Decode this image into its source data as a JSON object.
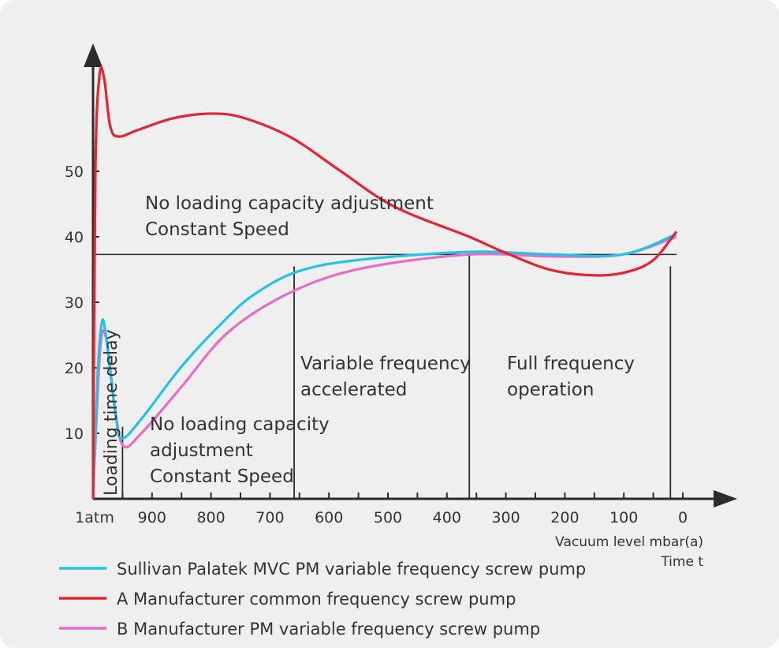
{
  "chart_data": {
    "type": "line",
    "xlabel": "Vacuum level mbar(a)",
    "xlabel2": "Time t",
    "xlim": [
      1000,
      -80
    ],
    "ylim": [
      0,
      66
    ],
    "x_ticks": [
      {
        "v": 1000,
        "label": "1atm"
      },
      {
        "v": 900,
        "label": "900"
      },
      {
        "v": 800,
        "label": "800"
      },
      {
        "v": 700,
        "label": "700"
      },
      {
        "v": 600,
        "label": "600"
      },
      {
        "v": 500,
        "label": "500"
      },
      {
        "v": 400,
        "label": "400"
      },
      {
        "v": 300,
        "label": "300"
      },
      {
        "v": 200,
        "label": "200"
      },
      {
        "v": 100,
        "label": "100"
      },
      {
        "v": 0,
        "label": "0"
      }
    ],
    "y_ticks": [
      10,
      20,
      30,
      40,
      50
    ],
    "reference_line": 37.3,
    "phase_boundaries": [
      {
        "x": 950,
        "top": 11
      },
      {
        "x": 659,
        "top": 35.5
      },
      {
        "x": 362,
        "top": 37.3
      },
      {
        "x": 21,
        "top": 35.5
      }
    ],
    "annotations": {
      "top": [
        "No loading capacity adjustment",
        "Constant Speed"
      ],
      "delay": "Loading time delay",
      "low": [
        "No loading capacity",
        " adjustment",
        "Constant Speed"
      ],
      "accel": [
        "Variable frequency",
        "accelerated"
      ],
      "full": [
        "Full frequency",
        "operation"
      ]
    },
    "series": [
      {
        "name": "Sullivan Palatek MVC PM variable frequency screw pump",
        "color": "#22c3e6",
        "points": [
          [
            1000,
            0
          ],
          [
            992,
            19.5
          ],
          [
            985,
            27
          ],
          [
            979,
            25.5
          ],
          [
            971,
            19.5
          ],
          [
            961,
            12.3
          ],
          [
            951,
            9.2
          ],
          [
            917,
            12.3
          ],
          [
            850,
            20.2
          ],
          [
            783,
            26.7
          ],
          [
            730,
            31
          ],
          [
            656,
            34.6
          ],
          [
            556,
            36.4
          ],
          [
            362,
            37.7
          ],
          [
            222,
            37.3
          ],
          [
            102,
            37.3
          ],
          [
            11,
            40.4
          ]
        ]
      },
      {
        "name": "A Manufacturer common frequency screw pump",
        "color": "#e8232f",
        "points": [
          [
            1000,
            0
          ],
          [
            996,
            50.2
          ],
          [
            989,
            64.7
          ],
          [
            981,
            64.1
          ],
          [
            971,
            56.9
          ],
          [
            957,
            55.3
          ],
          [
            924,
            56.3
          ],
          [
            864,
            58.1
          ],
          [
            797,
            58.8
          ],
          [
            743,
            58.1
          ],
          [
            663,
            55.1
          ],
          [
            583,
            50.2
          ],
          [
            489,
            44.6
          ],
          [
            362,
            40
          ],
          [
            302,
            37.6
          ],
          [
            222,
            34.9
          ],
          [
            142,
            34.1
          ],
          [
            88,
            34.8
          ],
          [
            48,
            36.6
          ],
          [
            11,
            40.8
          ]
        ]
      },
      {
        "name": "B Manufacturer PM variable frequency screw pump",
        "color": "#e86cc4",
        "points": [
          [
            1000,
            0
          ],
          [
            991,
            18.3
          ],
          [
            984,
            25.5
          ],
          [
            975,
            23
          ],
          [
            964,
            14.6
          ],
          [
            949,
            8.1
          ],
          [
            917,
            10.1
          ],
          [
            850,
            17.1
          ],
          [
            770,
            25.5
          ],
          [
            663,
            31.6
          ],
          [
            543,
            35.2
          ],
          [
            362,
            37.3
          ],
          [
            222,
            37
          ],
          [
            102,
            37.3
          ],
          [
            11,
            40
          ]
        ]
      }
    ]
  }
}
